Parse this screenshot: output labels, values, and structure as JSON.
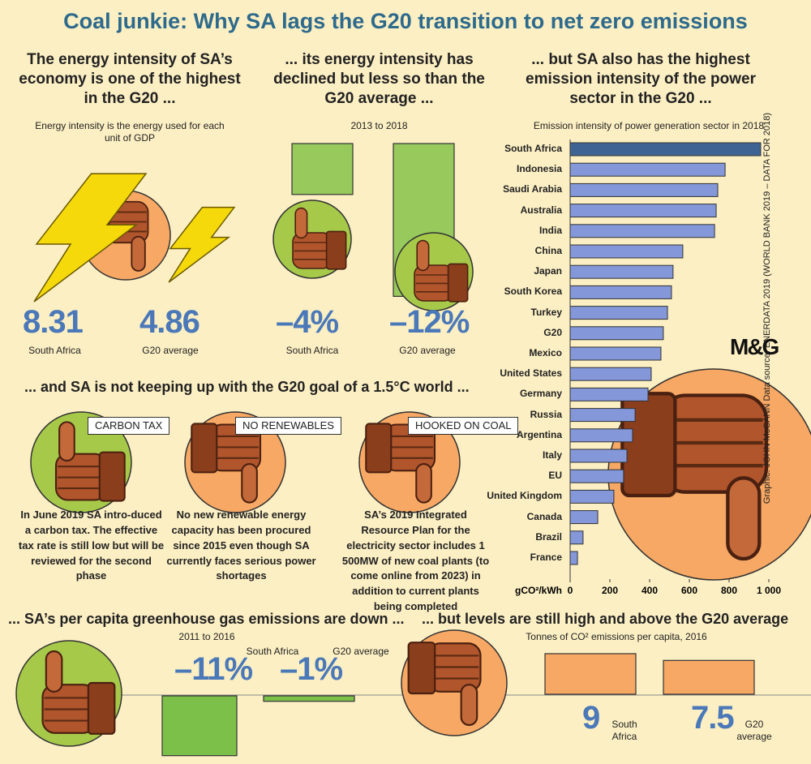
{
  "title": "Coal junkie: Why SA lags the G20 transition to net zero emissions",
  "credit": "Graphic: JOHN McCANN  Data source: ENERDATA 2019 (WORLD BANK 2019 – DATA FOR 2018)",
  "logo": "M&G",
  "goal": {
    "title": "... and SA is not keeping up with the G20 goal of a 1.5°C world ...",
    "items": [
      {
        "tag": "CARBON TAX",
        "text": "In June 2019 SA intro-duced a carbon tax. The effective tax rate is still low but will be reviewed for the second phase"
      },
      {
        "tag": "NO RENEWABLES",
        "text": "No new renewable energy capacity has been procured since 2015 even though SA currently faces serious power shortages"
      },
      {
        "tag": "HOOKED ON COAL",
        "text": "SA’s 2019 Integrated Resource Plan for the electricity sector includes 1 500MW of new coal plants (to come online from 2023) in addition to current plants being completed"
      }
    ]
  },
  "chart_data": [
    {
      "type": "pictogram",
      "title": "The energy intensity of SA’s economy is one of the highest in the G20 ...",
      "subtitle": "Energy intensity is the energy used for each unit of GDP",
      "categories": [
        "South Africa",
        "G20 average"
      ],
      "values": [
        8.31,
        4.86
      ],
      "color": "#f5d90a"
    },
    {
      "type": "bar",
      "title": "... its energy intensity has declined but less so than the G20 average ...",
      "subtitle": "2013 to 2018",
      "categories": [
        "South Africa",
        "G20 average"
      ],
      "values": [
        -4,
        -12
      ],
      "value_labels": [
        "–4%",
        "–12%"
      ],
      "color": "#97c95c"
    },
    {
      "type": "bar",
      "orientation": "horizontal",
      "title": "... but SA also has the highest emission intensity of the power sector in the G20 ...",
      "subtitle": "Emission intensity of power generation sector in 2018",
      "x_label": "gCO²/kWh",
      "categories": [
        "South Africa",
        "Indonesia",
        "Saudi Arabia",
        "Australia",
        "India",
        "China",
        "Japan",
        "South Korea",
        "Turkey",
        "G20",
        "Mexico",
        "United States",
        "Germany",
        "Russia",
        "Argentina",
        "Italy",
        "EU",
        "United Kingdom",
        "Canada",
        "Brazil",
        "France"
      ],
      "values": [
        959,
        780,
        743,
        735,
        727,
        567,
        518,
        510,
        490,
        469,
        457,
        408,
        392,
        327,
        314,
        286,
        269,
        220,
        139,
        65,
        37
      ],
      "colors": [
        "#3f6494",
        "#8397d9",
        "#8397d9",
        "#8397d9",
        "#8397d9",
        "#8397d9",
        "#8397d9",
        "#8397d9",
        "#8397d9",
        "#8397d9",
        "#8397d9",
        "#8397d9",
        "#8397d9",
        "#8397d9",
        "#8397d9",
        "#8397d9",
        "#8397d9",
        "#8397d9",
        "#8397d9",
        "#8397d9",
        "#8397d9"
      ],
      "xlim": [
        0,
        1000
      ],
      "xticks": [
        0,
        200,
        400,
        600,
        800,
        {
          "value": 1000,
          "label": "1 000"
        }
      ]
    },
    {
      "type": "bar",
      "title": "... SA’s per capita greenhouse gas emissions are down ...",
      "subtitle": "2011 to 2016",
      "categories": [
        "South Africa",
        "G20 average"
      ],
      "values": [
        -11,
        -1
      ],
      "value_labels": [
        "–11%",
        "–1%"
      ],
      "color": "#7cc049"
    },
    {
      "type": "bar",
      "title": "... but levels are still high and above the G20 average",
      "subtitle": "Tonnes of CO² emissions per capita, 2016",
      "categories": [
        "South Africa",
        "G20 average"
      ],
      "values": [
        9,
        7.5
      ],
      "color": "#f6a864"
    }
  ]
}
